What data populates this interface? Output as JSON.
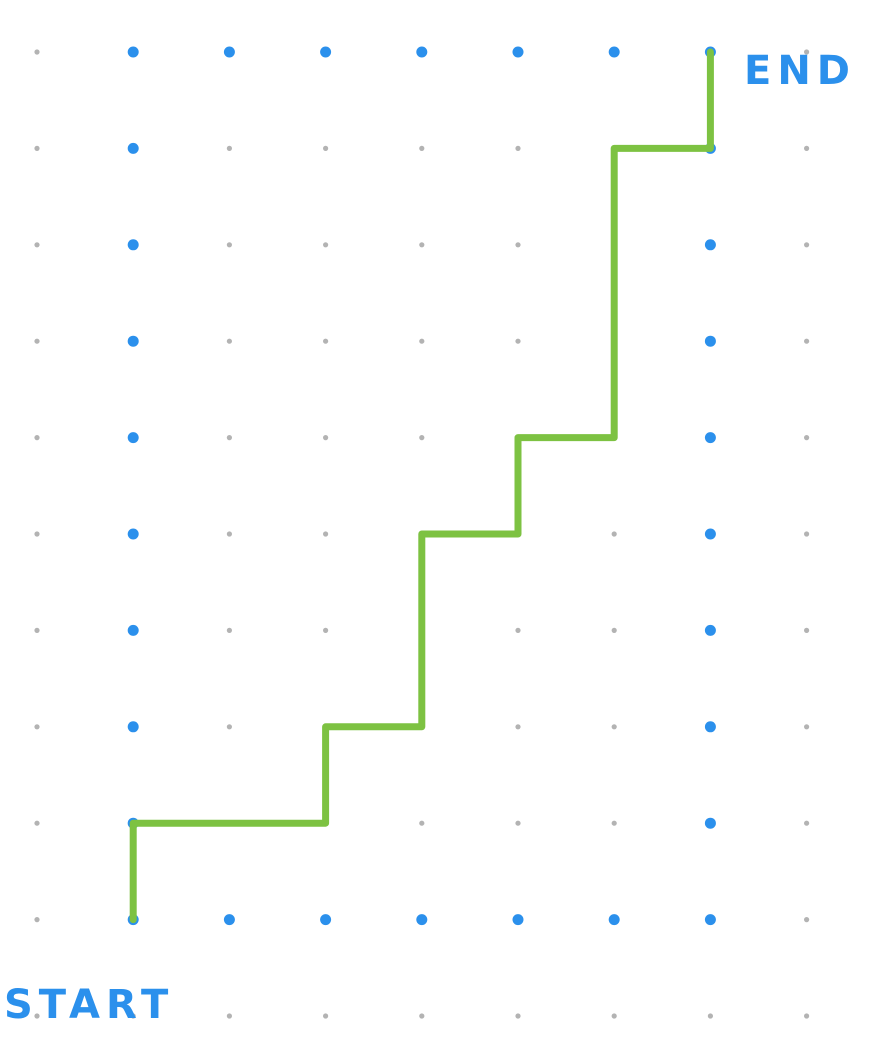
{
  "labels": {
    "start": "START",
    "end": "END"
  },
  "colors": {
    "background": "#ffffff",
    "grid_dot": "#b3b3b3",
    "boundary_dot": "#2b90ec",
    "path": "#7dc242",
    "label": "#2b90ec"
  },
  "grid": {
    "columns": 9,
    "rows": 11
  },
  "boundary": {
    "col_min": 1,
    "col_max": 7,
    "row_min": 0,
    "row_max": 9
  },
  "path": {
    "start": [
      1,
      9
    ],
    "end": [
      7,
      0
    ],
    "vertices": [
      [
        1,
        9
      ],
      [
        1,
        8
      ],
      [
        3,
        8
      ],
      [
        3,
        7
      ],
      [
        4,
        7
      ],
      [
        4,
        5
      ],
      [
        5,
        5
      ],
      [
        5,
        4
      ],
      [
        6,
        4
      ],
      [
        6,
        1
      ],
      [
        7,
        1
      ],
      [
        7,
        0
      ]
    ]
  }
}
